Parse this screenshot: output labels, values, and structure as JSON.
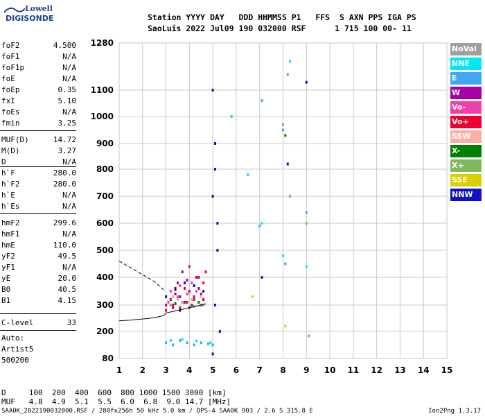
{
  "logo": {
    "line1": "Lowell",
    "line2": "DIGISONDE"
  },
  "header": {
    "labels": "Station YYYY DAY   DDD HHMMSS P1   FFS  S AXN PPS IGA PS",
    "values": "SaoLuis 2022 Jul09 190 032000 RSF      1 715 100 00- 11"
  },
  "params": [
    {
      "name": "foF2",
      "value": "4.500"
    },
    {
      "name": "foF1",
      "value": "N/A"
    },
    {
      "name": "foF1p",
      "value": "N/A"
    },
    {
      "name": "foE",
      "value": "N/A"
    },
    {
      "name": "foEp",
      "value": "0.35"
    },
    {
      "name": "fxI",
      "value": "5.10"
    },
    {
      "name": "foEs",
      "value": "N/A"
    },
    {
      "name": "fmin",
      "value": "3.25"
    },
    {
      "name": "MUF(D)",
      "value": "14.72"
    },
    {
      "name": "M(D)",
      "value": "3.27"
    },
    {
      "name": "D",
      "value": "N/A"
    },
    {
      "name": "h`F",
      "value": "280.0"
    },
    {
      "name": "h`F2",
      "value": "280.0"
    },
    {
      "name": "h`E",
      "value": "N/A"
    },
    {
      "name": "h`Es",
      "value": "N/A"
    },
    {
      "name": "hmF2",
      "value": "299.6"
    },
    {
      "name": "hmF1",
      "value": "N/A"
    },
    {
      "name": "hmE",
      "value": "110.0"
    },
    {
      "name": "yF2",
      "value": "49.5"
    },
    {
      "name": "yF1",
      "value": "N/A"
    },
    {
      "name": "yE",
      "value": "20.0"
    },
    {
      "name": "B0",
      "value": "40.5"
    },
    {
      "name": "B1",
      "value": "4.15"
    },
    {
      "name": "C-level",
      "value": "33"
    }
  ],
  "auto": {
    "line1": "Auto:",
    "line2": "Artist5",
    "line3": "500200"
  },
  "legend": [
    {
      "label": "NoVal",
      "color": "#a0a0a0"
    },
    {
      "label": "NNE",
      "color": "#00e8f8"
    },
    {
      "label": "E",
      "color": "#40a8f0"
    },
    {
      "label": "W",
      "color": "#a800a8"
    },
    {
      "label": "Vo-",
      "color": "#f040a8"
    },
    {
      "label": "Vo+",
      "color": "#f00030"
    },
    {
      "label": "SSW",
      "color": "#f8b0a8"
    },
    {
      "label": "X-",
      "color": "#008000"
    },
    {
      "label": "X+",
      "color": "#80b860"
    },
    {
      "label": "SSE",
      "color": "#d8d000"
    },
    {
      "label": "NNW",
      "color": "#1010c8"
    }
  ],
  "footer": {
    "d_row": "D     100  200  400  600  800 1000 1500 3000 [km]",
    "muf_row": "MUF   4.8  4.9  5.1  5.5  6.0  6.8  9.0 14.7 [MHz]",
    "file_info": "SAA0K_2022190032000.RSF / 280fx256h 50 kHz 5.0 km / DPS-4 SAA0K 903 / 2.6 S 315.8 E",
    "version": "Ion2Png 1.3.17"
  },
  "chart_data": {
    "type": "scatter",
    "x_ticks": [
      "1",
      "2",
      "3",
      "4",
      "5",
      "6",
      "7",
      "8",
      "9",
      "10",
      "11",
      "12",
      "13",
      "14",
      "15"
    ],
    "y_ticks": [
      "80",
      "200",
      "300",
      "400",
      "500",
      "600",
      "700",
      "800",
      "900",
      "1000",
      "1100",
      "1280"
    ],
    "xlim": [
      1,
      15
    ],
    "ylim": [
      80,
      1280
    ],
    "grid": true,
    "series": [
      {
        "color": "#a800a8",
        "points": [
          [
            3.0,
            300
          ],
          [
            3.2,
            320
          ],
          [
            3.4,
            340
          ],
          [
            3.6,
            330
          ],
          [
            3.8,
            310
          ],
          [
            4.0,
            350
          ],
          [
            4.2,
            330
          ],
          [
            4.4,
            360
          ],
          [
            4.6,
            320
          ],
          [
            3.5,
            380
          ],
          [
            3.9,
            390
          ],
          [
            4.3,
            400
          ],
          [
            3.3,
            290
          ],
          [
            4.1,
            300
          ],
          [
            3.7,
            420
          ]
        ]
      },
      {
        "color": "#f00030",
        "points": [
          [
            3.0,
            280
          ],
          [
            3.3,
            300
          ],
          [
            3.6,
            290
          ],
          [
            3.9,
            310
          ],
          [
            4.2,
            320
          ],
          [
            4.5,
            340
          ],
          [
            4.6,
            380
          ],
          [
            4.4,
            400
          ],
          [
            3.8,
            360
          ],
          [
            4.0,
            440
          ],
          [
            3.4,
            355
          ],
          [
            4.7,
            420
          ]
        ]
      },
      {
        "color": "#f040a8",
        "points": [
          [
            3.1,
            310
          ],
          [
            3.5,
            330
          ],
          [
            3.9,
            340
          ],
          [
            4.3,
            350
          ],
          [
            4.5,
            300
          ],
          [
            3.6,
            370
          ],
          [
            4.1,
            380
          ],
          [
            3.2,
            350
          ]
        ]
      },
      {
        "color": "#1010c8",
        "points": [
          [
            3.0,
            330
          ],
          [
            3.4,
            360
          ],
          [
            3.8,
            380
          ],
          [
            4.2,
            370
          ],
          [
            4.6,
            350
          ],
          [
            5.0,
            1100
          ],
          [
            5.1,
            900
          ],
          [
            5.0,
            700
          ],
          [
            5.2,
            500
          ],
          [
            5.1,
            300
          ],
          [
            5.3,
            200
          ],
          [
            5.0,
            100
          ],
          [
            5.2,
            600
          ],
          [
            5.1,
            800
          ],
          [
            7.1,
            400
          ],
          [
            8.2,
            820
          ],
          [
            9.0,
            1130
          ],
          [
            3.6,
            280
          ]
        ]
      },
      {
        "color": "#40a8f0",
        "points": [
          [
            3.0,
            150
          ],
          [
            3.3,
            140
          ],
          [
            3.6,
            160
          ],
          [
            3.9,
            150
          ],
          [
            4.2,
            140
          ],
          [
            4.5,
            150
          ],
          [
            4.8,
            145
          ],
          [
            5.0,
            140
          ],
          [
            7.0,
            590
          ],
          [
            7.1,
            1060
          ],
          [
            8.0,
            950
          ],
          [
            8.1,
            450
          ],
          [
            9.0,
            640
          ],
          [
            8.2,
            1160
          ]
        ]
      },
      {
        "color": "#00e8f8",
        "points": [
          [
            3.2,
            160
          ],
          [
            3.7,
            165
          ],
          [
            4.3,
            158
          ],
          [
            4.9,
            150
          ],
          [
            5.8,
            1000
          ],
          [
            6.5,
            780
          ],
          [
            7.1,
            600
          ],
          [
            8.0,
            480
          ],
          [
            8.3,
            1210
          ],
          [
            9.0,
            440
          ]
        ]
      },
      {
        "color": "#80b860",
        "points": [
          [
            3.2,
            300
          ],
          [
            3.7,
            310
          ],
          [
            4.2,
            295
          ],
          [
            4.6,
            300
          ],
          [
            8.0,
            970
          ],
          [
            8.3,
            700
          ],
          [
            9.0,
            600
          ],
          [
            9.1,
            180
          ]
        ]
      },
      {
        "color": "#008000",
        "points": [
          [
            3.4,
            305
          ],
          [
            4.0,
            290
          ],
          [
            4.4,
            310
          ],
          [
            8.1,
            930
          ]
        ]
      },
      {
        "color": "#d8d000",
        "points": [
          [
            3.3,
            330
          ],
          [
            4.1,
            320
          ],
          [
            6.7,
            330
          ],
          [
            8.1,
            220
          ]
        ]
      },
      {
        "color": "#f8b0a8",
        "points": [
          [
            3.5,
            320
          ],
          [
            4.0,
            340
          ],
          [
            4.5,
            330
          ]
        ]
      }
    ],
    "curves": [
      {
        "style": "solid",
        "x": [
          1,
          1.5,
          2,
          2.5,
          2.9,
          3.0,
          3.5,
          4.0,
          4.5,
          4.7
        ],
        "y": [
          240,
          243,
          247,
          252,
          260,
          270,
          280,
          290,
          300,
          305
        ]
      },
      {
        "style": "dashed",
        "x": [
          1,
          1.5,
          2,
          2.5,
          2.9
        ],
        "y": [
          460,
          435,
          410,
          385,
          355
        ]
      }
    ]
  }
}
